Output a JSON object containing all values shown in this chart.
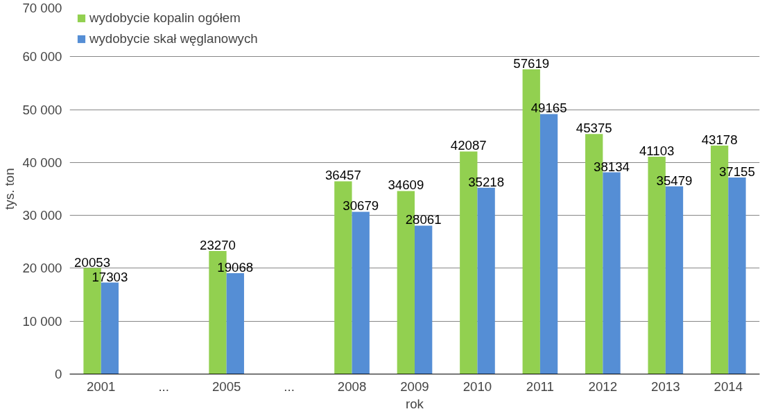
{
  "chart_data": {
    "type": "bar",
    "xlabel": "rok",
    "ylabel": "tys. ton",
    "categories": [
      "2001",
      "...",
      "2005",
      "...",
      "2008",
      "2009",
      "2010",
      "2011",
      "2012",
      "2013",
      "2014"
    ],
    "series": [
      {
        "name": "wydobycie kopalin ogółem",
        "color": "#92d050",
        "values": [
          20053,
          null,
          23270,
          null,
          36457,
          34609,
          42087,
          57619,
          45375,
          41103,
          43178
        ]
      },
      {
        "name": "wydobycie skał węglanowych",
        "color": "#558ed5",
        "values": [
          17303,
          null,
          19068,
          null,
          30679,
          28061,
          35218,
          49165,
          38134,
          35479,
          37155
        ]
      }
    ],
    "ylim": [
      0,
      70000
    ],
    "yticks": [
      {
        "value": 0,
        "label": "0"
      },
      {
        "value": 10000,
        "label": "10 000"
      },
      {
        "value": 20000,
        "label": "20 000"
      },
      {
        "value": 30000,
        "label": "30 000"
      },
      {
        "value": 40000,
        "label": "40 000"
      },
      {
        "value": 50000,
        "label": "50 000"
      },
      {
        "value": 60000,
        "label": "60 000"
      },
      {
        "value": 70000,
        "label": "70 000"
      }
    ],
    "grid": "y",
    "legend": "top left",
    "data_labels": true
  }
}
